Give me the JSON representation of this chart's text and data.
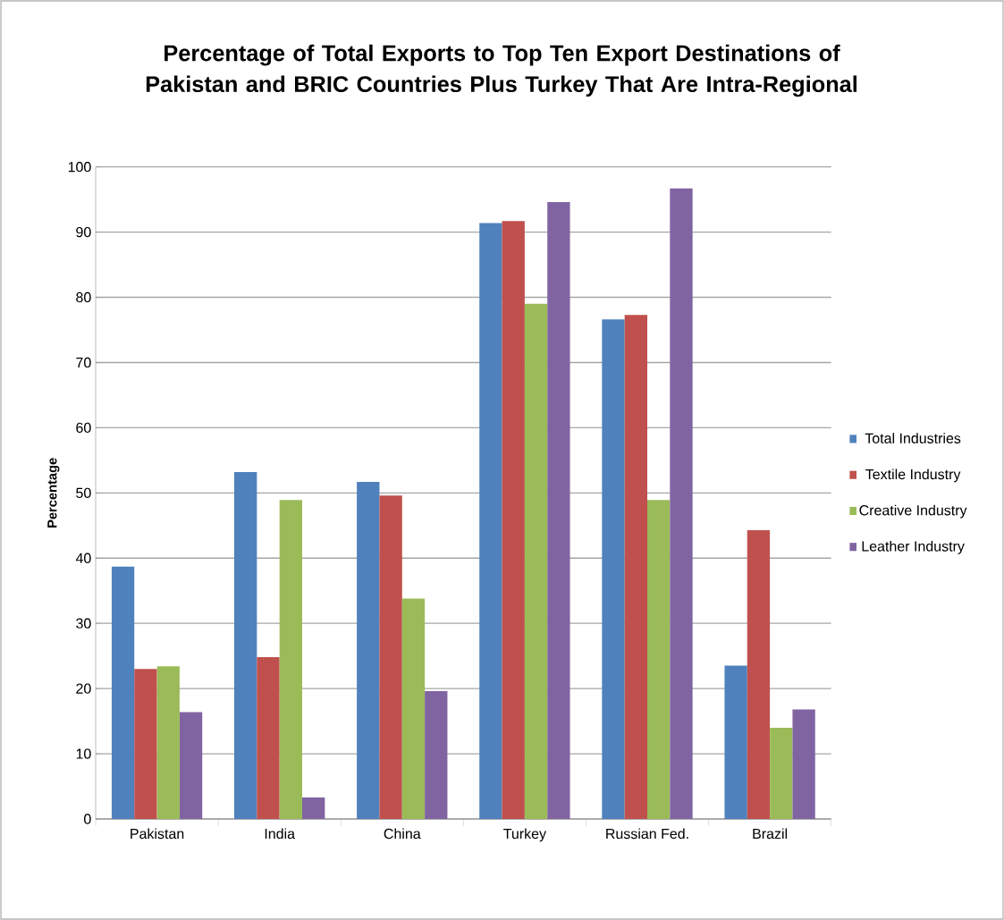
{
  "chart_data": {
    "type": "bar",
    "title": "Percentage of Total Exports to Top Ten Export Destinations of Pakistan and BRIC Countries Plus Turkey That Are Intra-Regional",
    "ylabel": "Percentage",
    "categories": [
      "Pakistan",
      "India",
      "China",
      "Turkey",
      "Russian Fed.",
      "Brazil"
    ],
    "series": [
      {
        "name": "Total Industries",
        "color": "#4f81bd",
        "values": [
          38.7,
          53.2,
          51.7,
          91.4,
          76.6,
          23.5
        ]
      },
      {
        "name": "Textile Industry",
        "color": "#c0504d",
        "values": [
          23.0,
          24.8,
          49.6,
          91.7,
          77.3,
          44.3
        ]
      },
      {
        "name": "Creative Industry",
        "color": "#9bbb59",
        "values": [
          23.4,
          48.9,
          33.8,
          79.0,
          48.9,
          14.0
        ]
      },
      {
        "name": "Leather Industry",
        "color": "#8064a2",
        "values": [
          16.4,
          3.3,
          19.6,
          94.6,
          96.7,
          16.8
        ]
      }
    ],
    "ylim": [
      0,
      100
    ],
    "yticks": [
      0,
      10,
      20,
      30,
      40,
      50,
      60,
      70,
      80,
      90,
      100
    ],
    "grid": "y",
    "legend": "right"
  }
}
